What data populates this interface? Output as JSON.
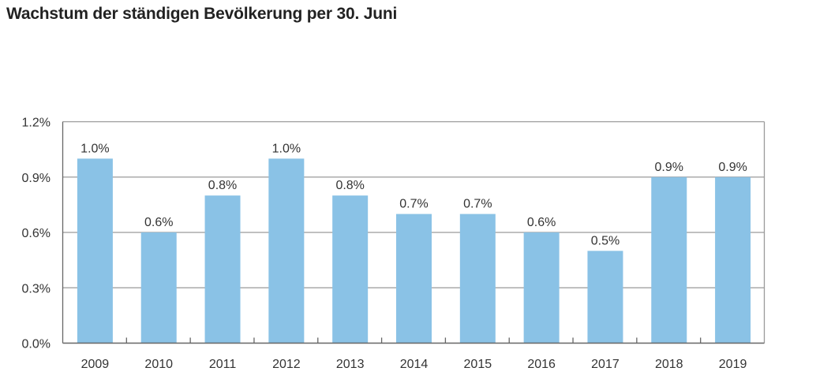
{
  "chart_data": {
    "type": "bar",
    "title": "Wachstum der ständigen Bevölkerung per 30. Juni",
    "xlabel": "",
    "ylabel": "",
    "categories": [
      "2009",
      "2010",
      "2011",
      "2012",
      "2013",
      "2014",
      "2015",
      "2016",
      "2017",
      "2018",
      "2019"
    ],
    "values": [
      1.0,
      0.6,
      0.8,
      1.0,
      0.8,
      0.7,
      0.7,
      0.6,
      0.5,
      0.9,
      0.9
    ],
    "data_labels": [
      "1.0%",
      "0.6%",
      "0.8%",
      "1.0%",
      "0.8%",
      "0.7%",
      "0.7%",
      "0.6%",
      "0.5%",
      "0.9%",
      "0.9%"
    ],
    "ylim": [
      0,
      1.2
    ],
    "yticks": [
      0,
      0.3,
      0.6,
      0.9,
      1.2
    ],
    "ytick_labels": [
      "0.0%",
      "0.3%",
      "0.6%",
      "0.9%",
      "1.2%"
    ],
    "grid": true,
    "colors": {
      "bar": "#8AC2E6",
      "grid": "#9a9a9a",
      "axis": "#666666"
    }
  }
}
